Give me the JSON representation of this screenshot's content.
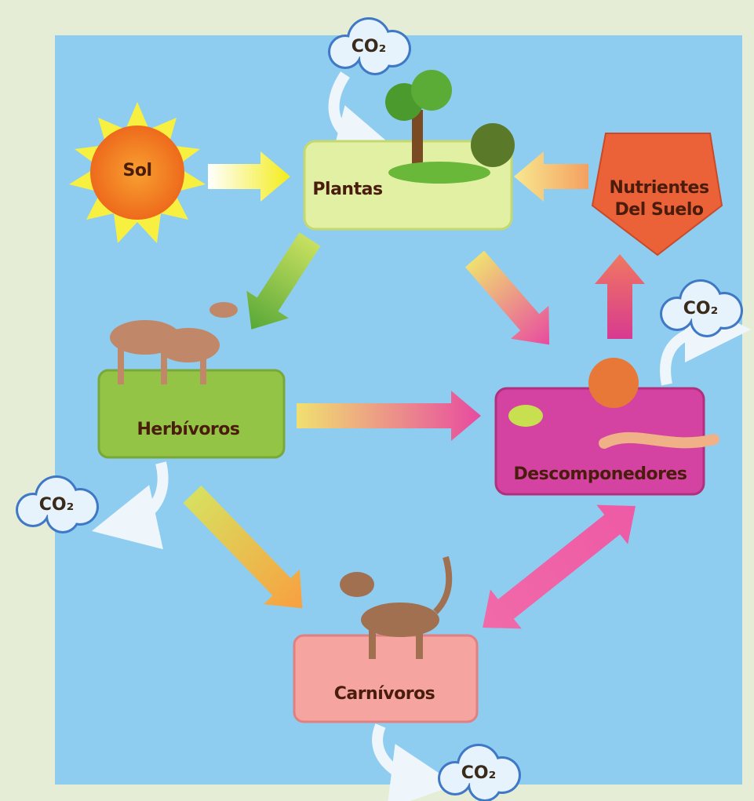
{
  "nodes": [
    {
      "label": "Sol"
    },
    {
      "label": "Plantas"
    },
    {
      "label_lines": [
        "Nutrientes",
        "Del Suelo"
      ]
    },
    {
      "label": "Herbívoros"
    },
    {
      "label": "Descomponedores"
    },
    {
      "label": "Carnívoros"
    }
  ],
  "co2_labels": [
    "CO₂",
    "CO₂",
    "CO₂",
    "CO₂"
  ]
}
